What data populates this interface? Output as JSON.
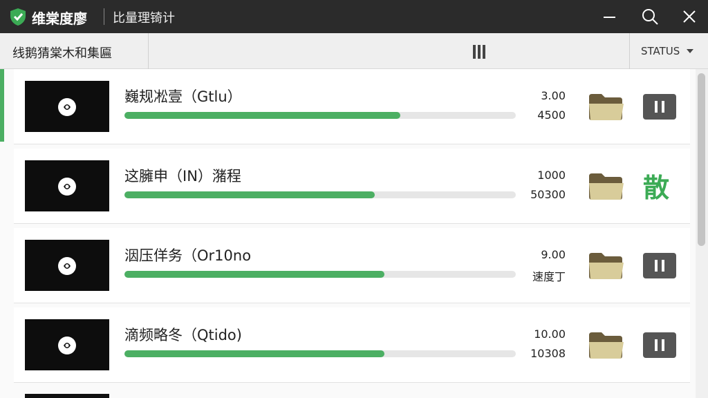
{
  "window": {
    "app_name": "维棠度廖",
    "subtitle": "比量理锜计"
  },
  "toolbar": {
    "label": "线鹅猜棠木和集匾",
    "status": "STATUS"
  },
  "items": [
    {
      "title": "巍规凇壹（Gtlu）",
      "progress": 0.705,
      "line1": "3.00",
      "line2": "4500",
      "action": "pause"
    },
    {
      "title": "这臃申（IN）潴程",
      "progress": 0.64,
      "line1": "1000",
      "line2": "50300",
      "action_label": "散"
    },
    {
      "title": "洇压佯务（Or10no",
      "progress": 0.665,
      "line1": "9.00",
      "line2": "速度丁",
      "action": "pause"
    },
    {
      "title": "滴频略冬（Qtido)",
      "progress": 0.665,
      "line1": "10.00",
      "line2": "10308",
      "action": "pause"
    }
  ]
}
